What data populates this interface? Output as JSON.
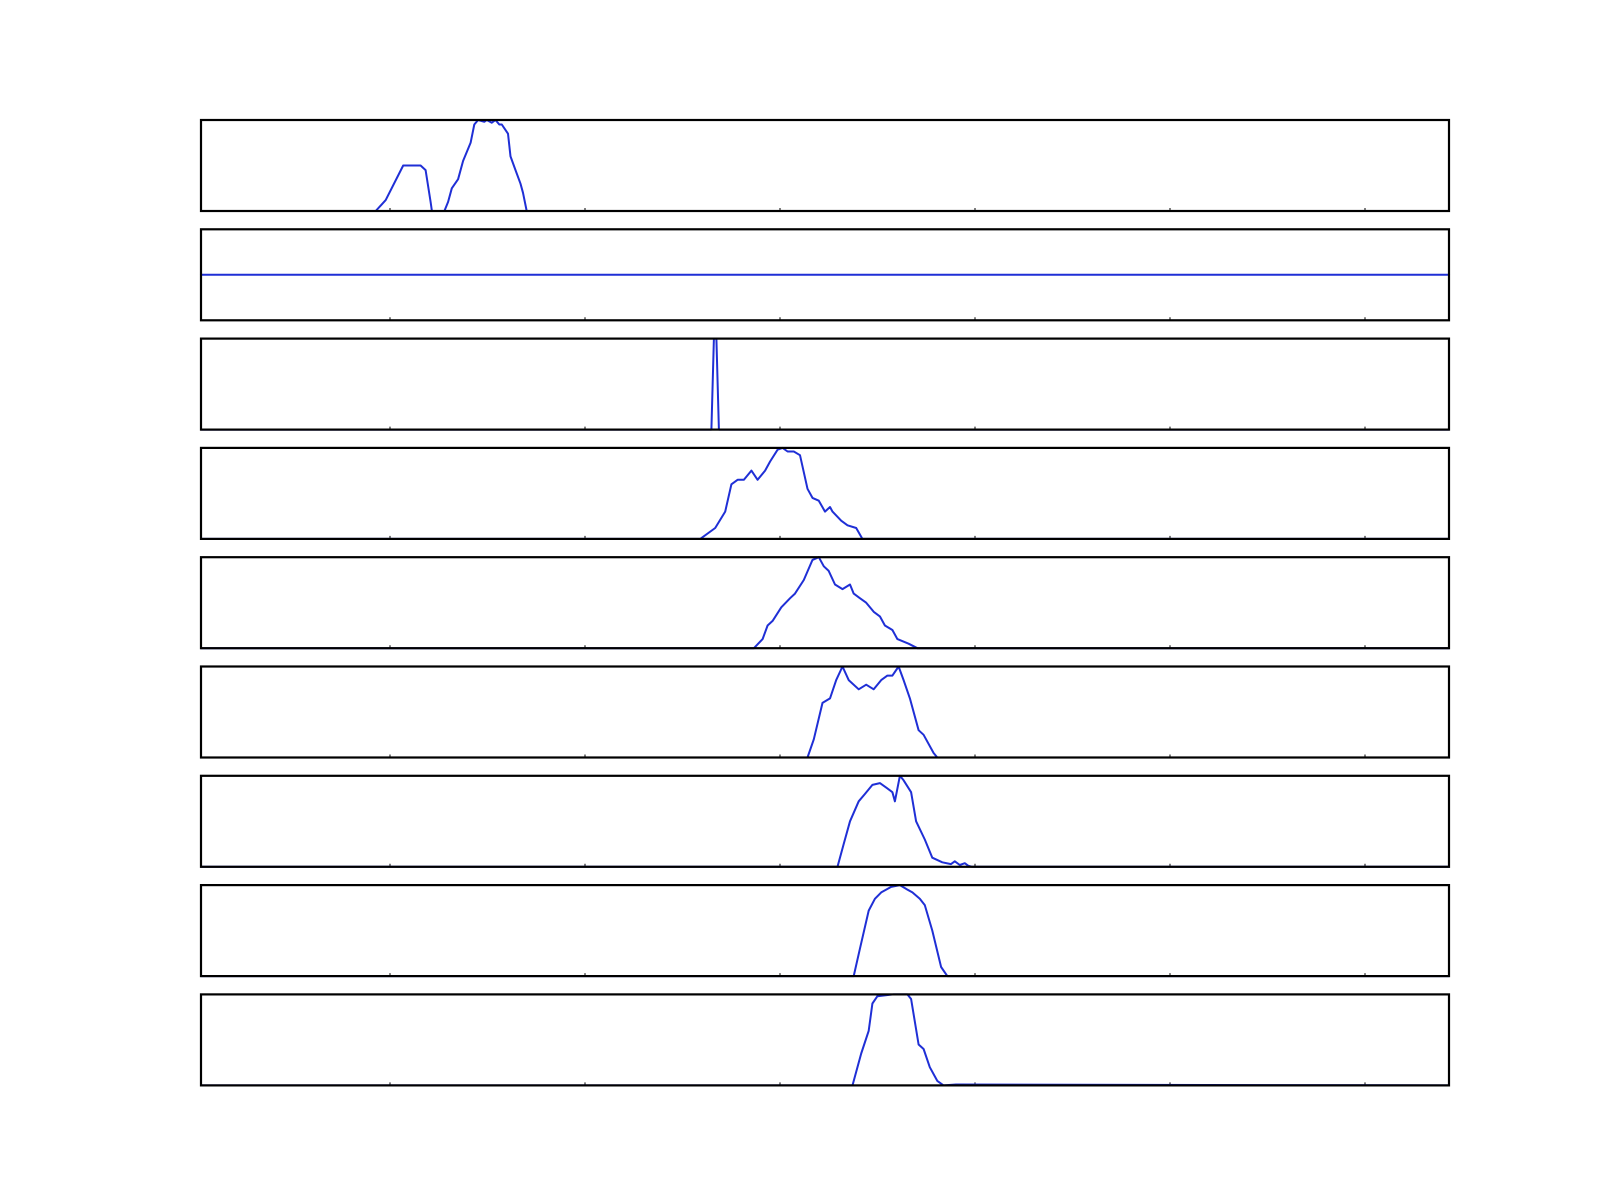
{
  "chart_data": [
    {
      "type": "line",
      "color": "#1f2fd6",
      "xlim": [
        0,
        100
      ],
      "ylim": [
        0,
        1
      ],
      "x": [
        0,
        14,
        14.8,
        16.2,
        16.3,
        17.6,
        18.0,
        18.4,
        18.5,
        19.5,
        19.8,
        20.1,
        20.6,
        21.0,
        21.6,
        21.9,
        22.2,
        22.7,
        22.9,
        23.3,
        23.6,
        23.9,
        24.1,
        24.6,
        24.8,
        25.2,
        25.6,
        25.8,
        26.1,
        100
      ],
      "y": [
        0,
        0,
        0.12,
        0.5,
        0.5,
        0.5,
        0.45,
        0.1,
        0,
        0,
        0.1,
        0.25,
        0.35,
        0.55,
        0.75,
        0.95,
        1.0,
        0.98,
        1.0,
        0.97,
        1.0,
        0.95,
        0.95,
        0.85,
        0.6,
        0.45,
        0.3,
        0.2,
        0,
        0
      ]
    },
    {
      "type": "line",
      "color": "#1f2fd6",
      "xlim": [
        0,
        100
      ],
      "ylim": [
        0,
        1
      ],
      "x": [
        0,
        100
      ],
      "y": [
        0.5,
        0.5
      ]
    },
    {
      "type": "line",
      "color": "#1f2fd6",
      "xlim": [
        0,
        100
      ],
      "ylim": [
        0,
        1
      ],
      "x": [
        0,
        40.9,
        41.1,
        41.3,
        41.5,
        100
      ],
      "y": [
        0,
        0,
        1.0,
        1.0,
        0,
        0
      ]
    },
    {
      "type": "line",
      "color": "#1f2fd6",
      "xlim": [
        0,
        100
      ],
      "ylim": [
        0,
        1
      ],
      "x": [
        0,
        40,
        41.2,
        42,
        42.5,
        43,
        43.5,
        44.1,
        44.6,
        45.2,
        45.6,
        46.2,
        46.6,
        47.0,
        47.5,
        48.0,
        48.6,
        49.0,
        49.5,
        50.0,
        50.4,
        50.6,
        51.3,
        51.8,
        52.5,
        53,
        100
      ],
      "y": [
        0,
        0,
        0.12,
        0.3,
        0.6,
        0.65,
        0.65,
        0.75,
        0.65,
        0.75,
        0.85,
        0.98,
        1.0,
        0.96,
        0.96,
        0.92,
        0.55,
        0.45,
        0.42,
        0.3,
        0.35,
        0.3,
        0.2,
        0.15,
        0.12,
        0,
        0
      ]
    },
    {
      "type": "line",
      "color": "#1f2fd6",
      "xlim": [
        0,
        100
      ],
      "ylim": [
        0,
        1
      ],
      "x": [
        0,
        44.3,
        45.0,
        45.4,
        45.8,
        46.5,
        47.2,
        47.6,
        48.3,
        49.0,
        49.5,
        49.9,
        50.3,
        50.8,
        51.4,
        52.0,
        52.3,
        52.8,
        53.3,
        53.9,
        54.4,
        54.8,
        55.4,
        55.8,
        56.7,
        57.4,
        100
      ],
      "y": [
        0,
        0,
        0.1,
        0.25,
        0.3,
        0.45,
        0.55,
        0.6,
        0.75,
        0.97,
        1.0,
        0.9,
        0.85,
        0.7,
        0.65,
        0.7,
        0.6,
        0.55,
        0.5,
        0.4,
        0.35,
        0.25,
        0.2,
        0.1,
        0.05,
        0,
        0
      ]
    },
    {
      "type": "line",
      "color": "#1f2fd6",
      "xlim": [
        0,
        100
      ],
      "ylim": [
        0,
        1
      ],
      "x": [
        0,
        48.6,
        49.1,
        49.8,
        50.4,
        50.9,
        51.4,
        51.9,
        52.7,
        53.3,
        53.9,
        54.5,
        55.0,
        55.4,
        55.9,
        56.3,
        56.8,
        57.5,
        57.9,
        58.7,
        59.0,
        59.5,
        100
      ],
      "y": [
        0,
        0,
        0.2,
        0.6,
        0.65,
        0.85,
        1.0,
        0.85,
        0.75,
        0.8,
        0.75,
        0.85,
        0.9,
        0.9,
        1.0,
        0.85,
        0.65,
        0.3,
        0.25,
        0.05,
        0,
        0,
        0
      ]
    },
    {
      "type": "line",
      "color": "#1f2fd6",
      "xlim": [
        0,
        100
      ],
      "ylim": [
        0,
        1
      ],
      "x": [
        0,
        51.0,
        51.5,
        52.0,
        52.7,
        53.2,
        53.8,
        54.4,
        54.9,
        55.4,
        55.6,
        56.0,
        56.3,
        56.9,
        57.3,
        58.0,
        58.6,
        59.4,
        60.1,
        60.4,
        60.8,
        61.2,
        61.5,
        61.8,
        100
      ],
      "y": [
        0,
        0,
        0.25,
        0.5,
        0.72,
        0.8,
        0.9,
        0.92,
        0.87,
        0.82,
        0.72,
        1.0,
        0.95,
        0.82,
        0.5,
        0.3,
        0.1,
        0.05,
        0.03,
        0.06,
        0.02,
        0.04,
        0.01,
        0,
        0
      ]
    },
    {
      "type": "line",
      "color": "#1f2fd6",
      "xlim": [
        0,
        100
      ],
      "ylim": [
        0,
        1
      ],
      "x": [
        0,
        52.3,
        52.8,
        53.5,
        54.0,
        54.5,
        55.3,
        56.0,
        56.6,
        57.0,
        57.6,
        58.0,
        58.6,
        59.3,
        59.8,
        100
      ],
      "y": [
        0,
        0,
        0.3,
        0.72,
        0.85,
        0.92,
        0.98,
        1.0,
        0.95,
        0.92,
        0.85,
        0.78,
        0.5,
        0.1,
        0,
        0
      ]
    },
    {
      "type": "line",
      "color": "#1f2fd6",
      "xlim": [
        0,
        100
      ],
      "ylim": [
        0,
        1
      ],
      "x": [
        0,
        52.2,
        52.9,
        53.5,
        53.8,
        54.2,
        55.5,
        56.6,
        56.9,
        57.5,
        57.9,
        58.4,
        59.0,
        59.5,
        60.5,
        100
      ],
      "y": [
        0,
        0,
        0.35,
        0.6,
        0.9,
        0.98,
        1.0,
        1.0,
        0.95,
        0.45,
        0.4,
        0.2,
        0.05,
        0,
        0.01,
        0
      ]
    }
  ]
}
